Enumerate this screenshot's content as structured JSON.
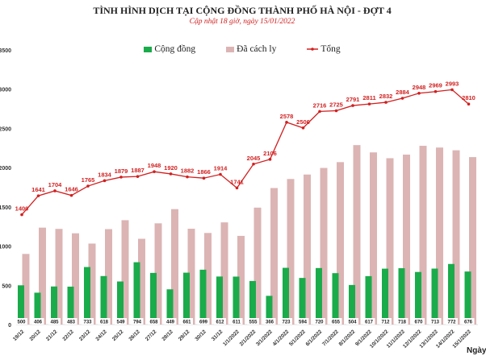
{
  "chart_data": {
    "type": "bar",
    "title": "TÌNH HÌNH DỊCH TẠI CỘNG ĐỒNG THÀNH PHỐ HÀ NỘI - ĐỢT 4",
    "subtitle": "Cập nhật 18 giờ, ngày 15/01/2022",
    "xlabel": "Ngày",
    "ylim": [
      0,
      3500
    ],
    "yticks": [
      0,
      500,
      1000,
      1500,
      2000,
      2500,
      3000,
      3500
    ],
    "legend_position": "top",
    "grid": false,
    "categories": [
      "19/12",
      "20/12",
      "21/12",
      "22/12",
      "23/12",
      "24/12",
      "25/12",
      "26/12",
      "27/12",
      "28/12",
      "29/12",
      "30/12",
      "31/12",
      "1/1/2022",
      "2/1/2022",
      "3/1/2022",
      "4/1/2022",
      "5/1/2022",
      "6/1/2022",
      "7/1/2022",
      "8/1/2022",
      "9/1/2022",
      "10/1/2022",
      "11/1/2022",
      "12/1/2022",
      "13/1/2022",
      "14/1/2022",
      "15/1/2022"
    ],
    "series": [
      {
        "name": "Cộng đồng",
        "type": "bar",
        "color": "#1aab4b",
        "values": [
          500,
          406,
          485,
          483,
          733,
          618,
          549,
          794,
          658,
          449,
          661,
          699,
          612,
          611,
          555,
          366,
          723,
          594,
          720,
          655,
          504,
          617,
          712,
          718,
          670,
          713,
          772,
          676
        ]
      },
      {
        "name": "Đã cách ly",
        "type": "bar",
        "color": "#dcb4b4",
        "values": [
          900,
          1235,
          1219,
          1163,
          1032,
          1216,
          1330,
          1093,
          1290,
          1471,
          1221,
          1167,
          1302,
          1130,
          1490,
          1740,
          1855,
          1912,
          1996,
          2070,
          2287,
          2194,
          2120,
          2166,
          2278,
          2256,
          2221,
          2134
        ]
      },
      {
        "name": "Tổng",
        "type": "line",
        "color": "#d21f1f",
        "values": [
          1400,
          1641,
          1704,
          1646,
          1765,
          1834,
          1879,
          1887,
          1948,
          1920,
          1882,
          1866,
          1914,
          1741,
          2045,
          2106,
          2578,
          2506,
          2716,
          2725,
          2791,
          2811,
          2832,
          2884,
          2948,
          2969,
          2993,
          2810
        ]
      }
    ]
  }
}
